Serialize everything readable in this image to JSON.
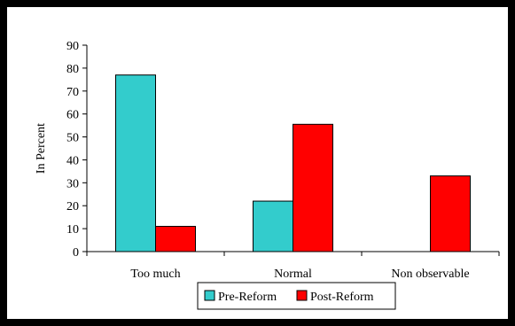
{
  "chart_data": {
    "type": "bar",
    "title": "",
    "xlabel": "",
    "ylabel": "In Percent",
    "ylim": [
      0,
      90
    ],
    "yticks": [
      0,
      10,
      20,
      30,
      40,
      50,
      60,
      70,
      80,
      90
    ],
    "grid": false,
    "legend_position": "bottom",
    "categories": [
      "Too much",
      "Normal",
      "Non observable"
    ],
    "series": [
      {
        "name": "Pre-Reform",
        "color": "#33CCCC",
        "values": [
          77,
          22,
          0
        ]
      },
      {
        "name": "Post-Reform",
        "color": "#FF0000",
        "values": [
          11,
          55.5,
          33
        ]
      }
    ]
  }
}
